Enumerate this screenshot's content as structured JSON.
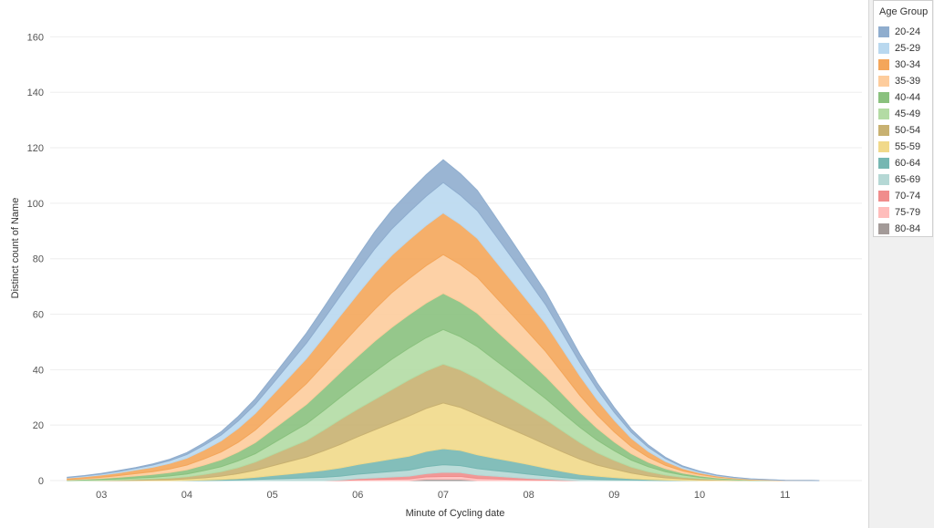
{
  "chart_data": {
    "type": "area",
    "stacked": true,
    "xlabel": "Minute of Cycling date",
    "ylabel": "Distinct count of Name",
    "ylim": [
      0,
      170
    ],
    "xlim": [
      2.4,
      11.9
    ],
    "x_ticks": [
      "03",
      "04",
      "05",
      "06",
      "07",
      "08",
      "09",
      "10",
      "11"
    ],
    "y_ticks": [
      0,
      20,
      40,
      60,
      80,
      100,
      120,
      140,
      160
    ],
    "grid": true,
    "legend_position": "right",
    "legend_title": "Age Group",
    "x": [
      2.6,
      2.8,
      3.0,
      3.2,
      3.4,
      3.6,
      3.8,
      4.0,
      4.2,
      4.4,
      4.6,
      4.8,
      5.0,
      5.2,
      5.4,
      5.6,
      5.8,
      6.0,
      6.2,
      6.4,
      6.6,
      6.8,
      7.0,
      7.2,
      7.4,
      7.6,
      7.8,
      8.0,
      8.2,
      8.4,
      8.6,
      8.8,
      9.0,
      9.2,
      9.4,
      9.6,
      9.8,
      10.0,
      10.2,
      10.4,
      10.6,
      11.0,
      11.4
    ],
    "series": [
      {
        "name": "80-84",
        "color": "#a39a98",
        "values": [
          0,
          0,
          0,
          0,
          0,
          0,
          0,
          0,
          0,
          0,
          0,
          0,
          0,
          0,
          0,
          0,
          0,
          0,
          0,
          0,
          0,
          0.5,
          0.5,
          0.5,
          0,
          0,
          0,
          0,
          0,
          0,
          0,
          0,
          0,
          0,
          0,
          0,
          0,
          0,
          0,
          0,
          0,
          0,
          0
        ]
      },
      {
        "name": "75-79",
        "color": "#ffbdbb",
        "values": [
          0,
          0,
          0,
          0,
          0,
          0,
          0,
          0,
          0,
          0,
          0,
          0,
          0,
          0,
          0,
          0,
          0,
          0.3,
          0.4,
          0.5,
          0.6,
          0.8,
          1,
          1,
          0.8,
          0.6,
          0.4,
          0.3,
          0.2,
          0,
          0,
          0,
          0,
          0,
          0,
          0,
          0,
          0,
          0,
          0,
          0,
          0,
          0
        ]
      },
      {
        "name": "70-74",
        "color": "#f08d8c",
        "values": [
          0,
          0,
          0,
          0,
          0,
          0,
          0,
          0,
          0,
          0,
          0,
          0,
          0,
          0,
          0,
          0,
          0.2,
          0.4,
          0.6,
          0.8,
          1,
          1.2,
          1.5,
          1.4,
          1.2,
          1,
          0.8,
          0.5,
          0.3,
          0.2,
          0,
          0,
          0,
          0,
          0,
          0,
          0,
          0,
          0,
          0,
          0,
          0,
          0
        ]
      },
      {
        "name": "65-69",
        "color": "#b5d8d5",
        "values": [
          0,
          0,
          0,
          0,
          0,
          0,
          0,
          0,
          0,
          0.1,
          0.2,
          0.4,
          0.6,
          0.8,
          1,
          1.2,
          1.4,
          1.6,
          1.8,
          2,
          2.2,
          2.5,
          2.7,
          2.5,
          2.3,
          2,
          1.8,
          1.5,
          1.2,
          0.9,
          0.6,
          0.4,
          0.3,
          0.2,
          0.1,
          0,
          0,
          0,
          0,
          0,
          0,
          0,
          0
        ]
      },
      {
        "name": "60-64",
        "color": "#76b7b2",
        "values": [
          0,
          0,
          0,
          0,
          0,
          0,
          0,
          0.1,
          0.2,
          0.3,
          0.5,
          0.8,
          1.2,
          1.6,
          2,
          2.5,
          3,
          3.5,
          4,
          4.5,
          5,
          5.5,
          5.8,
          5.5,
          5,
          4.5,
          4,
          3.5,
          2.8,
          2.2,
          1.6,
          1.2,
          0.8,
          0.5,
          0.3,
          0.2,
          0.1,
          0,
          0,
          0,
          0,
          0,
          0
        ]
      },
      {
        "name": "55-59",
        "color": "#f1d98a",
        "values": [
          0,
          0,
          0,
          0,
          0.1,
          0.2,
          0.3,
          0.5,
          0.8,
          1.2,
          1.8,
          2.5,
          3.5,
          4.5,
          5.5,
          7,
          8.5,
          10,
          11.5,
          13,
          14.5,
          15.5,
          16.5,
          15.5,
          14.5,
          13,
          11.5,
          10,
          8.5,
          7,
          5.5,
          4,
          3,
          2,
          1.3,
          0.8,
          0.5,
          0.3,
          0.2,
          0.1,
          0,
          0,
          0
        ]
      },
      {
        "name": "50-54",
        "color": "#c8b171",
        "values": [
          0,
          0,
          0.1,
          0.2,
          0.3,
          0.4,
          0.6,
          0.8,
          1.2,
          1.6,
          2.2,
          3,
          4,
          5,
          6,
          7.5,
          9,
          10,
          11,
          12,
          13,
          13.5,
          14,
          13.5,
          13,
          12,
          11,
          10,
          9,
          7.5,
          6,
          4.5,
          3.2,
          2.2,
          1.5,
          1,
          0.6,
          0.4,
          0.2,
          0.1,
          0,
          0,
          0
        ]
      },
      {
        "name": "45-49",
        "color": "#b3dba4",
        "values": [
          0,
          0.2,
          0.3,
          0.4,
          0.5,
          0.6,
          0.8,
          1,
          1.4,
          1.8,
          2.4,
          3,
          4,
          5,
          6,
          7,
          8,
          9,
          10,
          11,
          11.5,
          12,
          12.5,
          12,
          11.5,
          10.5,
          9.5,
          8.5,
          7.5,
          6.5,
          5.5,
          4.5,
          3.5,
          2.5,
          1.8,
          1.2,
          0.8,
          0.5,
          0.3,
          0.2,
          0.1,
          0,
          0
        ]
      },
      {
        "name": "40-44",
        "color": "#8ac17e",
        "values": [
          0.2,
          0.3,
          0.4,
          0.6,
          0.8,
          1,
          1.2,
          1.5,
          2,
          2.5,
          3.2,
          4,
          5,
          6,
          7,
          8,
          9,
          10,
          11,
          11.5,
          12,
          12.5,
          13,
          12.5,
          12,
          11,
          10,
          9,
          8,
          6.8,
          5.5,
          4.3,
          3.2,
          2.3,
          1.6,
          1.1,
          0.7,
          0.5,
          0.3,
          0.2,
          0.1,
          0,
          0
        ]
      },
      {
        "name": "35-39",
        "color": "#fdcc9c",
        "values": [
          0.2,
          0.3,
          0.4,
          0.6,
          0.8,
          1,
          1.3,
          1.7,
          2.2,
          2.8,
          3.5,
          4.5,
          5.5,
          6.5,
          7.5,
          8.5,
          9.5,
          10.5,
          11.5,
          12.5,
          13,
          13.5,
          14,
          13.5,
          13,
          12,
          11,
          10,
          9,
          7.5,
          6,
          4.8,
          3.6,
          2.6,
          1.8,
          1.2,
          0.8,
          0.5,
          0.3,
          0.2,
          0.1,
          0,
          0
        ]
      },
      {
        "name": "30-34",
        "color": "#f4a65a",
        "values": [
          0.5,
          0.6,
          0.8,
          1,
          1.3,
          1.6,
          2,
          2.5,
          3.2,
          4,
          5,
          6,
          7,
          8,
          9,
          10,
          11,
          12,
          13,
          13.5,
          14,
          14.5,
          15,
          14.5,
          14,
          13,
          12,
          11,
          10,
          8.5,
          7,
          5.5,
          4.2,
          3,
          2.1,
          1.4,
          0.9,
          0.6,
          0.4,
          0.2,
          0.2,
          0.1,
          0
        ]
      },
      {
        "name": "25-29",
        "color": "#b9d8ef",
        "values": [
          0.2,
          0.3,
          0.4,
          0.5,
          0.6,
          0.8,
          1,
          1.3,
          1.7,
          2.1,
          2.7,
          3.3,
          4,
          4.8,
          5.6,
          6.4,
          7.2,
          8,
          8.8,
          9.5,
          10,
          10.5,
          11,
          10.5,
          10,
          9.3,
          8.5,
          7.7,
          6.8,
          5.8,
          4.8,
          3.8,
          2.9,
          2.1,
          1.5,
          1,
          0.6,
          0.4,
          0.2,
          0.1,
          0.1,
          0,
          0
        ]
      },
      {
        "name": "20-24",
        "color": "#8fadce",
        "values": [
          0.1,
          0.1,
          0.2,
          0.3,
          0.3,
          0.4,
          0.5,
          0.7,
          0.9,
          1.2,
          1.6,
          2,
          2.5,
          3,
          3.6,
          4.2,
          4.8,
          5.5,
          6.2,
          6.8,
          7.3,
          7.8,
          8.2,
          7.8,
          7.3,
          6.7,
          6,
          5.3,
          4.6,
          3.8,
          3,
          2.3,
          1.7,
          1.2,
          0.8,
          0.5,
          0.3,
          0.2,
          0.1,
          0.1,
          0,
          0,
          0
        ]
      }
    ]
  }
}
